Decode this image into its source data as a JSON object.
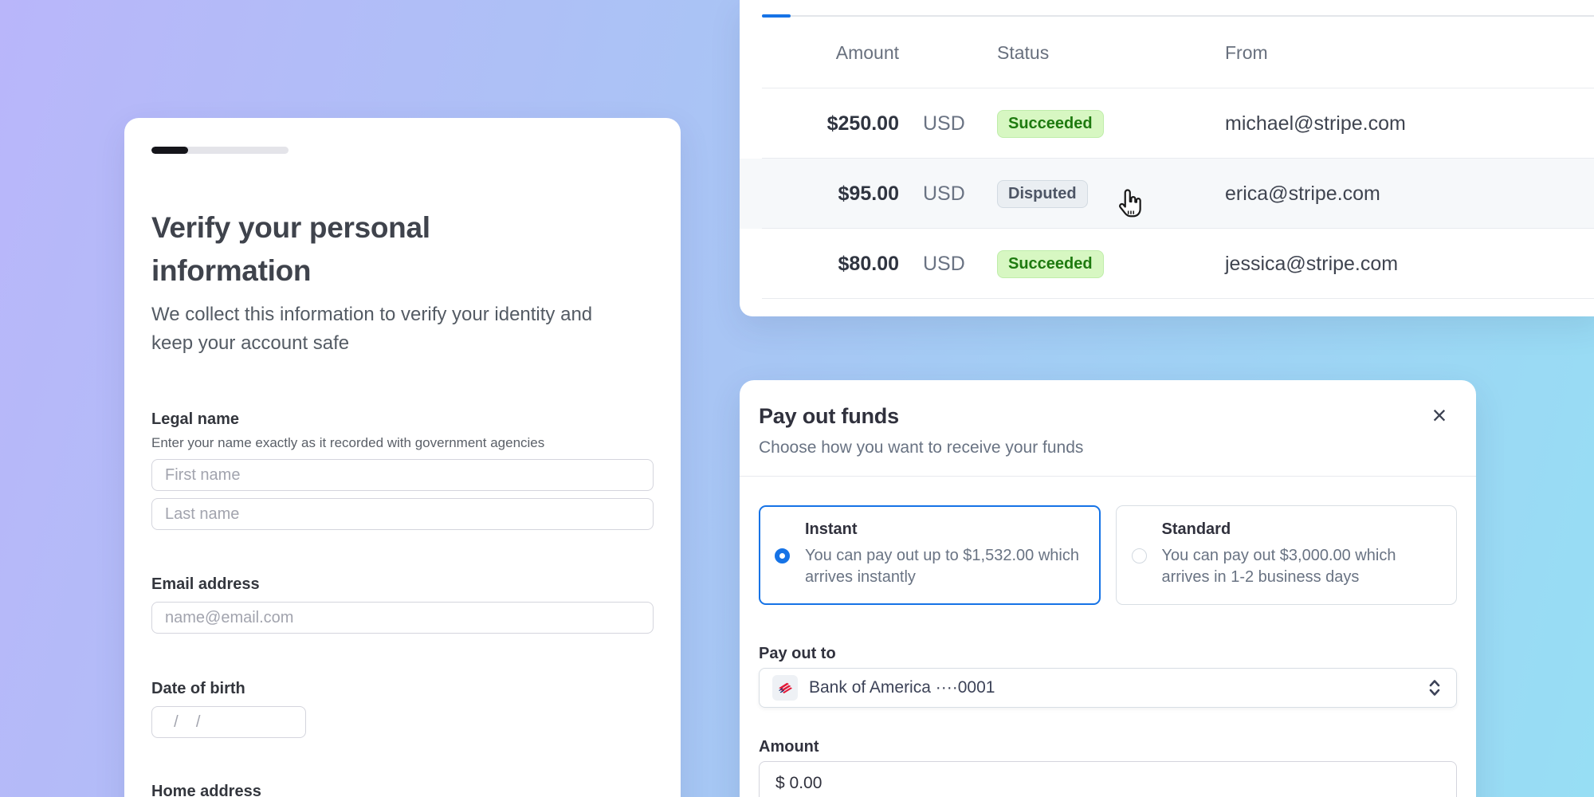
{
  "colors": {
    "accent_blue": "#1673e6",
    "success_bg": "#d7f7c2",
    "success_text": "#1e7a0f",
    "neutral_bg": "#eaeef2",
    "neutral_border": "#d3dbe2",
    "neutral_text": "#4d5565",
    "progress_fill": "#15151a",
    "progress_track": "#e4e4e9",
    "gradient_start": "#b9b6fa",
    "gradient_mid": "#a7c6f4",
    "gradient_end": "#97def4"
  },
  "verify_card": {
    "progress_percent": "27",
    "title": "Verify your personal information",
    "subtitle": "We collect this information to verify your identity and keep your account safe",
    "legal_name": {
      "label": "Legal name",
      "helper": "Enter your name exactly as it recorded with government agencies",
      "first_name_placeholder": "First name",
      "last_name_placeholder": "Last name"
    },
    "email": {
      "label": "Email address",
      "placeholder": "name@email.com"
    },
    "dob": {
      "label": "Date of birth",
      "placeholder": "  /    /"
    },
    "home_address": {
      "label": "Home address"
    }
  },
  "payments_table": {
    "columns": {
      "amount": "Amount",
      "status": "Status",
      "from": "From"
    },
    "rows": [
      {
        "amount": "$250.00",
        "currency": "USD",
        "status": "Succeeded",
        "from": "michael@stripe.com"
      },
      {
        "amount": "$95.00",
        "currency": "USD",
        "status": "Disputed",
        "from": "erica@stripe.com"
      },
      {
        "amount": "$80.00",
        "currency": "USD",
        "status": "Succeeded",
        "from": "jessica@stripe.com"
      }
    ]
  },
  "payout_modal": {
    "title": "Pay out funds",
    "subtitle": "Choose how you want to receive your funds",
    "close_glyph": "×",
    "options": [
      {
        "name": "Instant",
        "description": "You can pay out up to $1,532.00 which arrives instantly",
        "selected": true
      },
      {
        "name": "Standard",
        "description": "You can pay out $3,000.00 which arrives in 1-2 business days",
        "selected": false
      }
    ],
    "payout_to": {
      "label": "Pay out to",
      "value": "Bank of America ····0001",
      "icon": "bank-of-america-icon"
    },
    "amount": {
      "label": "Amount",
      "value": "$ 0.00"
    }
  }
}
